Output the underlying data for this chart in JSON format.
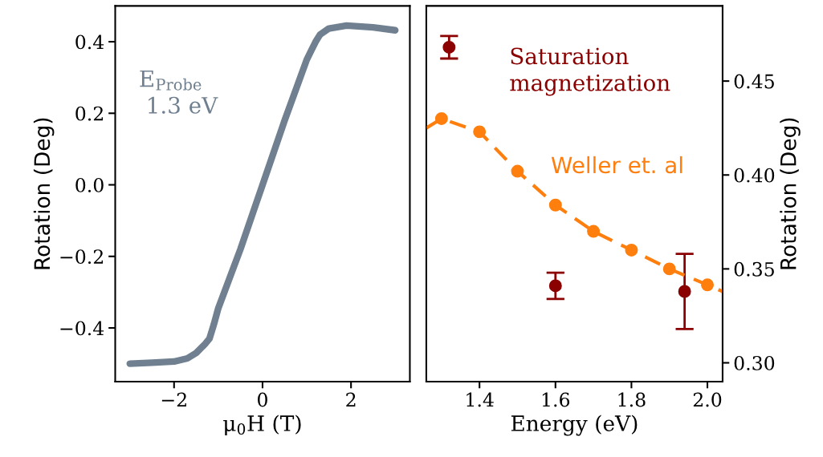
{
  "chart_data": [
    {
      "type": "line",
      "xlabel": "μ$_{0}$H (T)",
      "ylabel": "Rotation (Deg)",
      "xlim": [
        -3.33,
        3.33
      ],
      "xticks": [
        {
          "value": -2,
          "label": "−2"
        },
        0,
        2
      ],
      "ylim": [
        -0.55,
        0.5
      ],
      "yticks": [
        {
          "value": -0.4,
          "label": "−0.4"
        },
        {
          "value": -0.2,
          "label": "−0.2"
        },
        {
          "value": 0.0,
          "label": "0.0"
        },
        0.2,
        0.4
      ],
      "grid": false,
      "legend": false,
      "marker": "none",
      "line_style": "solid",
      "series": [
        {
          "name": "E$_{Probe}$\n 1.3 eV",
          "color": "#708090",
          "x": [
            -3.0,
            -2.5,
            -2.0,
            -1.7,
            -1.5,
            -1.3,
            -1.2,
            -1.1,
            -1.0,
            -0.5,
            0.0,
            0.5,
            1.0,
            1.1,
            1.2,
            1.3,
            1.5,
            1.9,
            2.5,
            3.0
          ],
          "values": [
            -0.5,
            -0.497,
            -0.494,
            -0.485,
            -0.47,
            -0.445,
            -0.43,
            -0.39,
            -0.345,
            -0.18,
            0.0,
            0.18,
            0.35,
            0.375,
            0.4,
            0.42,
            0.437,
            0.445,
            0.44,
            0.432
          ]
        }
      ]
    },
    {
      "type": "scatter",
      "xlabel": "Energy (eV)",
      "y2label": "Rotation (Deg)",
      "xlim": [
        1.26,
        2.04
      ],
      "xticks": [
        1.4,
        1.6,
        1.8,
        {
          "value": 2.0,
          "label": "2.0"
        }
      ],
      "y2lim": [
        0.29,
        0.49
      ],
      "y2ticks": [
        {
          "value": 0.3,
          "label": "0.30"
        },
        0.35,
        {
          "value": 0.4,
          "label": "0.40"
        },
        0.45
      ],
      "grid": false,
      "legend": false,
      "series": [
        {
          "name": "Saturation\nmagnetization",
          "type": "scatter",
          "axis": "y2",
          "color": "#8b0000",
          "marker": "circle",
          "x": [
            1.32,
            1.6,
            1.94
          ],
          "values": [
            0.468,
            0.341,
            0.338
          ],
          "errors": [
            0.006,
            0.007,
            0.02
          ]
        },
        {
          "type": "line",
          "axis": "y2",
          "color": "#ff7f0e",
          "marker": "none",
          "line_style": "dashed",
          "x": [
            1.26,
            1.3,
            1.4,
            1.5,
            1.6,
            1.7,
            1.8,
            1.9,
            2.0,
            2.04
          ],
          "values": [
            0.425,
            0.43,
            0.423,
            0.402,
            0.384,
            0.37,
            0.36,
            0.35,
            0.3415,
            0.338
          ]
        },
        {
          "name": "Weller et. al",
          "type": "scatter",
          "axis": "y2",
          "color": "#ff7f0e",
          "marker": "circle",
          "x": [
            1.3,
            1.4,
            1.5,
            1.6,
            1.7,
            1.8,
            1.9,
            2.0
          ],
          "values": [
            0.43,
            0.423,
            0.402,
            0.384,
            0.37,
            0.36,
            0.35,
            0.3415
          ]
        }
      ]
    }
  ]
}
